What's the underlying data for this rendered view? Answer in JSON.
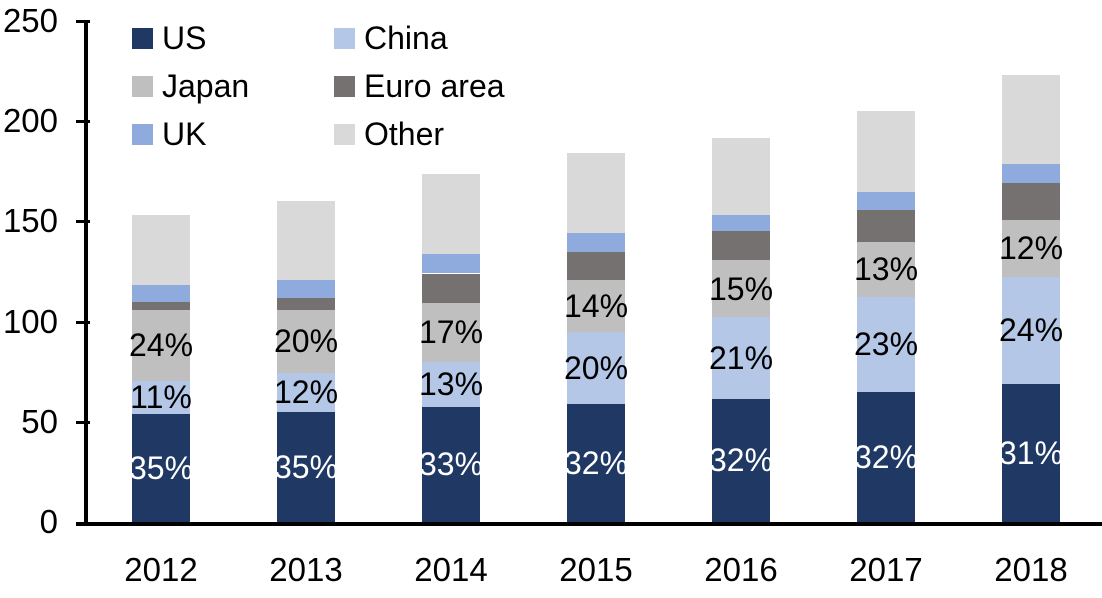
{
  "chart_data": {
    "type": "bar",
    "stacked": true,
    "title": "",
    "xlabel": "",
    "ylabel": "",
    "grid": false,
    "categories": [
      "2012",
      "2013",
      "2014",
      "2015",
      "2016",
      "2017",
      "2018"
    ],
    "series": [
      {
        "name": "US",
        "color": "#1F3864",
        "values": [
          54,
          55,
          57.5,
          59,
          61.5,
          65,
          69
        ],
        "labels": [
          "35%",
          "35%",
          "33%",
          "32%",
          "32%",
          "32%",
          "31%"
        ],
        "label_color": "#FFFFFF"
      },
      {
        "name": "China",
        "color": "#B4C7E7",
        "values": [
          16.5,
          19.5,
          22.5,
          36,
          41,
          47.5,
          53.5
        ],
        "labels": [
          "11%",
          "12%",
          "13%",
          "20%",
          "21%",
          "23%",
          "24%"
        ],
        "label_color": "#000000"
      },
      {
        "name": "Japan",
        "color": "#BFBFBF",
        "values": [
          35.5,
          31.5,
          29.5,
          26,
          28,
          27,
          28
        ],
        "labels": [
          "24%",
          "20%",
          "17%",
          "14%",
          "15%",
          "13%",
          "12%"
        ],
        "label_color": "#000000"
      },
      {
        "name": "Euro area",
        "color": "#767171",
        "values": [
          4,
          6,
          14.5,
          13.5,
          14.5,
          16,
          18.5
        ],
        "labels": null,
        "label_color": null
      },
      {
        "name": "UK",
        "color": "#8FAADC",
        "values": [
          8.5,
          9,
          9.5,
          9.5,
          8,
          9,
          9.5
        ],
        "labels": null,
        "label_color": null
      },
      {
        "name": "Other",
        "color": "#D9D9D9",
        "values": [
          34.5,
          39,
          40,
          40,
          38.5,
          40.5,
          44.5
        ],
        "labels": null,
        "label_color": null
      }
    ],
    "totals": [
      153,
      160,
      173.5,
      184,
      191.5,
      205,
      223
    ],
    "y_axis": {
      "min": 0,
      "max": 250,
      "tick_interval": 50,
      "ticks": [
        0,
        50,
        100,
        150,
        200,
        250
      ]
    },
    "legend": {
      "position": "top-left",
      "columns": 2,
      "items_order": [
        "US",
        "China",
        "Japan",
        "Euro area",
        "UK",
        "Other"
      ]
    }
  }
}
